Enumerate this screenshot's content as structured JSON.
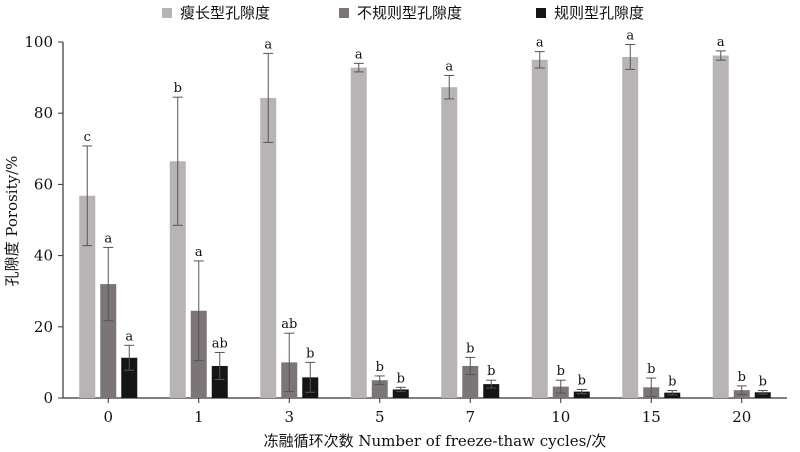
{
  "chart_data": {
    "type": "bar",
    "title": "",
    "xlabel": "冻融循环次数 Number of freeze-thaw cycles/次",
    "ylabel": "孔隙度 Porosity/%",
    "ylim": [
      0,
      100
    ],
    "yticks": [
      "0",
      "20",
      "40",
      "60",
      "80",
      "100"
    ],
    "categories": [
      "0",
      "1",
      "3",
      "5",
      "7",
      "10",
      "15",
      "20"
    ],
    "legend_position": "top",
    "grid": false,
    "series": [
      {
        "name": "瘦长型孔隙度",
        "color": "#b8b3b4",
        "values": [
          56.8,
          66.5,
          84.3,
          92.8,
          87.3,
          95.0,
          95.8,
          96.2
        ],
        "errors": [
          14.0,
          18.0,
          12.5,
          1.2,
          3.3,
          2.3,
          3.5,
          1.3
        ],
        "labels": [
          "c",
          "b",
          "a",
          "a",
          "a",
          "a",
          "a",
          "a"
        ]
      },
      {
        "name": "不规则型孔隙度",
        "color": "#7b7578",
        "values": [
          32.0,
          24.5,
          10.0,
          5.0,
          9.0,
          3.2,
          3.0,
          2.2
        ],
        "errors": [
          10.3,
          14.0,
          8.2,
          1.2,
          2.4,
          1.8,
          2.6,
          1.2
        ],
        "labels": [
          "a",
          "a",
          "ab",
          "b",
          "b",
          "b",
          "b",
          "b"
        ]
      },
      {
        "name": "规则型孔隙度",
        "color": "#151515",
        "values": [
          11.3,
          9.0,
          5.8,
          2.4,
          3.9,
          1.8,
          1.5,
          1.6
        ],
        "errors": [
          3.5,
          3.8,
          4.2,
          0.6,
          1.1,
          0.6,
          0.6,
          0.5
        ],
        "labels": [
          "a",
          "ab",
          "b",
          "b",
          "b",
          "b",
          "b",
          "b"
        ]
      }
    ]
  }
}
